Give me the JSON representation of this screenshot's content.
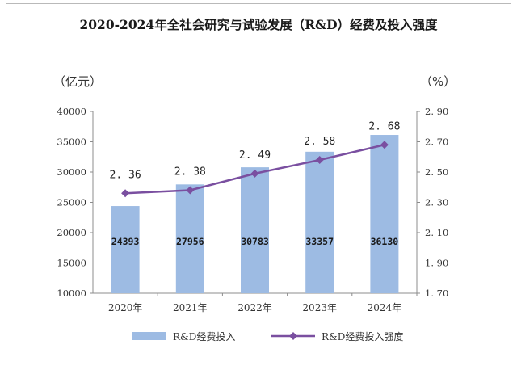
{
  "chart_data": {
    "type": "bar",
    "title": "2020-2024年全社会研究与试验发展（R&D）经费及投入强度",
    "left_unit": "（亿元）",
    "right_unit": "（%）",
    "categories": [
      "2020年",
      "2021年",
      "2022年",
      "2023年",
      "2024年"
    ],
    "bar_series": {
      "name": "R&D经费投入",
      "values": [
        24393,
        27956,
        30783,
        33357,
        36130
      ],
      "labels": [
        "24393",
        "27956",
        "30783",
        "33357",
        "36130"
      ],
      "color": "#9dbbe3"
    },
    "line_series": {
      "name": "R&D经费投入强度",
      "values": [
        2.36,
        2.38,
        2.49,
        2.58,
        2.68
      ],
      "labels": [
        "2. 36",
        "2. 38",
        "2. 49",
        "2. 58",
        "2. 68"
      ],
      "color": "#7a4fa0"
    },
    "y_left": {
      "min": 10000,
      "max": 40000,
      "ticks": [
        10000,
        15000,
        20000,
        25000,
        30000,
        35000,
        40000
      ],
      "tick_labels": [
        "10000",
        "15000",
        "20000",
        "25000",
        "30000",
        "35000",
        "40000"
      ]
    },
    "y_right": {
      "min": 1.7,
      "max": 2.9,
      "ticks": [
        1.7,
        1.9,
        2.1,
        2.3,
        2.5,
        2.7,
        2.9
      ],
      "tick_labels": [
        "1. 70",
        "1. 90",
        "2. 10",
        "2. 30",
        "2. 50",
        "2. 70",
        "2. 90"
      ]
    },
    "grid": false,
    "legend_position": "bottom"
  }
}
